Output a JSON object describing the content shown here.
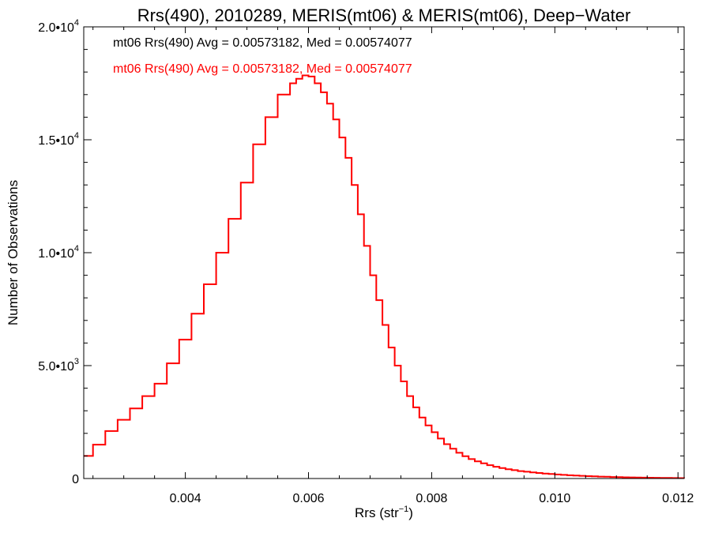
{
  "chart_data": {
    "type": "histogram",
    "title": "Rrs(490), 2010289, MERIS(mt06) & MERIS(mt06), Deep−Water",
    "xlabel_main": "Rrs (str",
    "xlabel_sup": "−1",
    "xlabel_tail": ")",
    "ylabel": "Number of Observations",
    "xlim": [
      0.00235,
      0.0121
    ],
    "ylim": [
      0,
      20000
    ],
    "x_ticks": [
      0.004,
      0.006,
      0.008,
      0.01,
      0.012
    ],
    "x_tick_labels": [
      "0.004",
      "0.006",
      "0.008",
      "0.010",
      "0.012"
    ],
    "y_ticks": [
      0,
      5000,
      10000,
      15000,
      20000
    ],
    "y_tick_labels": [
      {
        "base": "0",
        "exp": ""
      },
      {
        "base": "5.0•10",
        "exp": "3"
      },
      {
        "base": "1.0•10",
        "exp": "4"
      },
      {
        "base": "1.5•10",
        "exp": "4"
      },
      {
        "base": "2.0•10",
        "exp": "4"
      }
    ],
    "grid": false,
    "annotations": [
      {
        "text": "mt06 Rrs(490) Avg = 0.00573182, Med = 0.00574077",
        "color": "#000000"
      },
      {
        "text": "mt06 Rrs(490) Avg = 0.00573182, Med = 0.00574077",
        "color": "#ff0000"
      }
    ],
    "series": [
      {
        "color": "#ff0000",
        "x": [
          0.00235,
          0.0025,
          0.0027,
          0.0029,
          0.0031,
          0.0033,
          0.0035,
          0.0037,
          0.0039,
          0.0041,
          0.0043,
          0.0045,
          0.0047,
          0.0049,
          0.0051,
          0.0053,
          0.0055,
          0.0057,
          0.0058,
          0.0059,
          0.006,
          0.0061,
          0.0062,
          0.0063,
          0.0064,
          0.0065,
          0.0066,
          0.0067,
          0.0068,
          0.0069,
          0.007,
          0.0071,
          0.0072,
          0.0073,
          0.0074,
          0.0075,
          0.0076,
          0.0077,
          0.0078,
          0.0079,
          0.008,
          0.0081,
          0.0082,
          0.0083,
          0.0084,
          0.0085,
          0.0086,
          0.0087,
          0.0088,
          0.0089,
          0.009,
          0.0091,
          0.0092,
          0.0093,
          0.0094,
          0.0095,
          0.0096,
          0.0097,
          0.0098,
          0.0099,
          0.01,
          0.0101,
          0.0102,
          0.0103,
          0.0104,
          0.0105,
          0.0106,
          0.0107,
          0.0108,
          0.0109,
          0.011,
          0.0111,
          0.0112,
          0.0113,
          0.0114,
          0.0115,
          0.0116,
          0.0117,
          0.0118,
          0.0119,
          0.012,
          0.0121
        ],
        "y": [
          1000,
          1500,
          2100,
          2600,
          3100,
          3650,
          4200,
          5100,
          6150,
          7300,
          8600,
          10000,
          11500,
          13100,
          14800,
          16000,
          17000,
          17500,
          17700,
          17850,
          17800,
          17500,
          17100,
          16600,
          15900,
          15100,
          14200,
          13000,
          11700,
          10300,
          9000,
          7900,
          6800,
          5800,
          5000,
          4300,
          3650,
          3150,
          2700,
          2350,
          2050,
          1770,
          1520,
          1320,
          1140,
          990,
          860,
          760,
          670,
          590,
          520,
          460,
          410,
          370,
          330,
          300,
          270,
          245,
          220,
          200,
          180,
          160,
          145,
          130,
          118,
          106,
          95,
          85,
          76,
          68,
          60,
          54,
          48,
          43,
          38,
          34,
          30,
          27,
          24,
          21,
          18,
          15
        ]
      }
    ]
  }
}
